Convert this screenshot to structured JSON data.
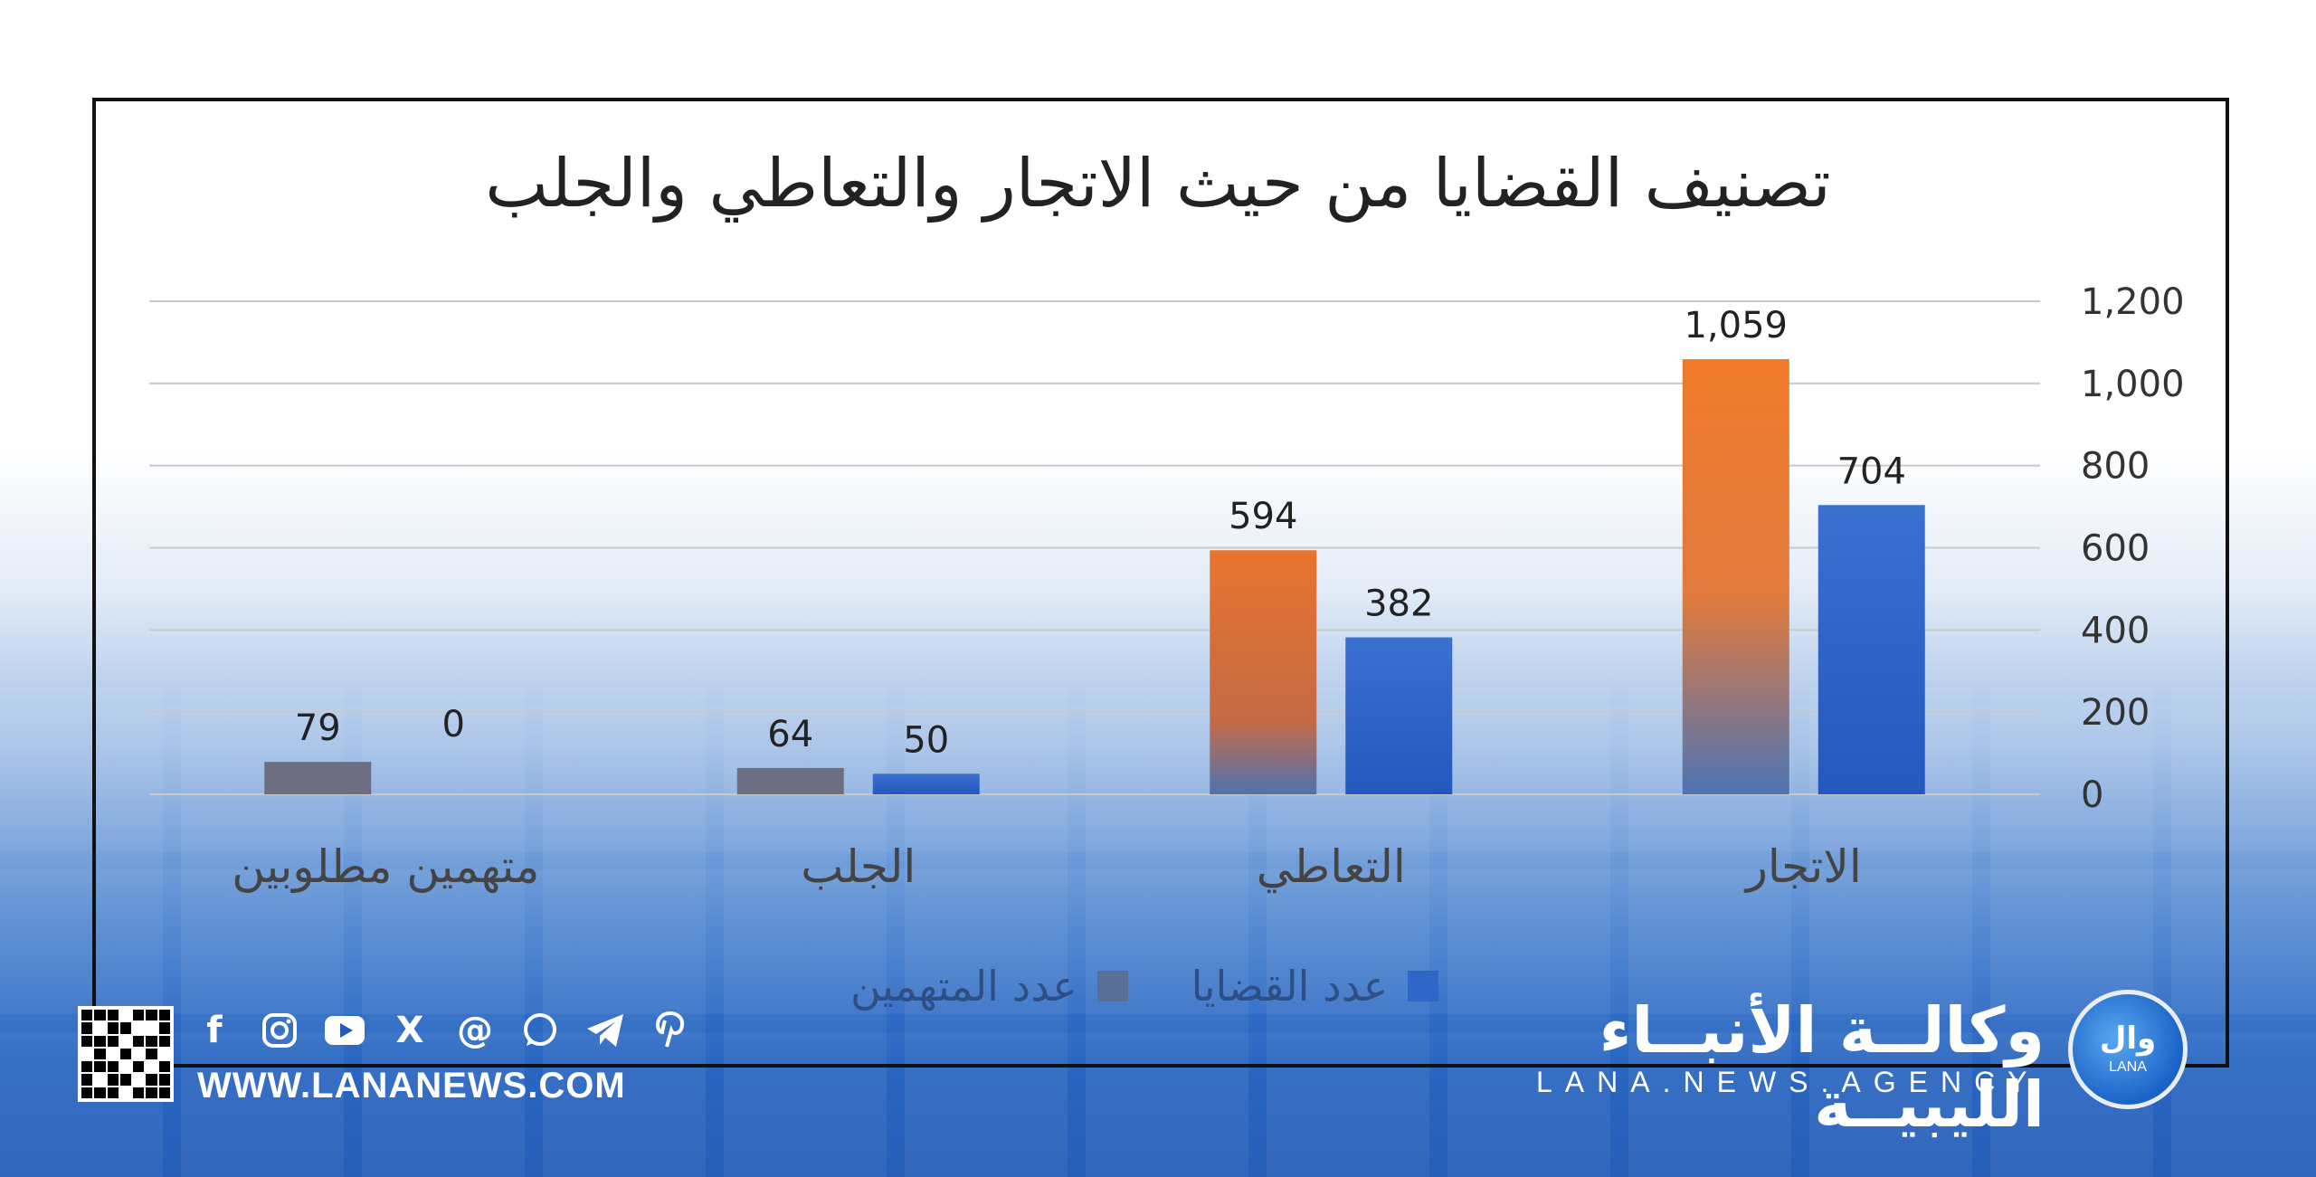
{
  "chart_data": {
    "type": "bar",
    "title": "تصنيف القضايا من حيث الاتجار والتعاطي والجلب",
    "categories": [
      "الاتجار",
      "التعاطي",
      "الجلب",
      "متهمين مطلوبين"
    ],
    "series": [
      {
        "name": "عدد المتهمين",
        "values": [
          1059,
          594,
          64,
          79
        ]
      },
      {
        "name": "عدد القضايا",
        "values": [
          704,
          382,
          50,
          0
        ]
      }
    ],
    "data_labels": [
      [
        "1,059",
        "594",
        "64",
        "79"
      ],
      [
        "704",
        "382",
        "50",
        "0"
      ]
    ],
    "ylim": [
      0,
      1200
    ],
    "yticks": [
      "0",
      "200",
      "400",
      "600",
      "800",
      "1,000",
      "1,200"
    ],
    "ytick_values": [
      0,
      200,
      400,
      600,
      800,
      1000,
      1200
    ],
    "y_axis_side": "right",
    "x_axis_direction": "right-to-left",
    "grid": true,
    "legend_position": "bottom",
    "colors": {
      "series_0_top": "#f07a2a",
      "series_0_bottom": "#4d74b4",
      "series_0_grey": "#6e6e82",
      "series_1": "#2f67c9"
    }
  },
  "branding": {
    "agency_name": "وكالــة الأنبــاء الليبيــة",
    "agency_tagline": "LANA.NEWS.AGENCY",
    "logo_text": "وال",
    "logo_subtext": "LANA",
    "website": "WWW.LANANEWS.COM",
    "social_icons": [
      "facebook-icon",
      "instagram-icon",
      "youtube-icon",
      "x-icon",
      "threads-icon",
      "whatsapp-icon",
      "telegram-icon",
      "pinterest-icon"
    ]
  }
}
